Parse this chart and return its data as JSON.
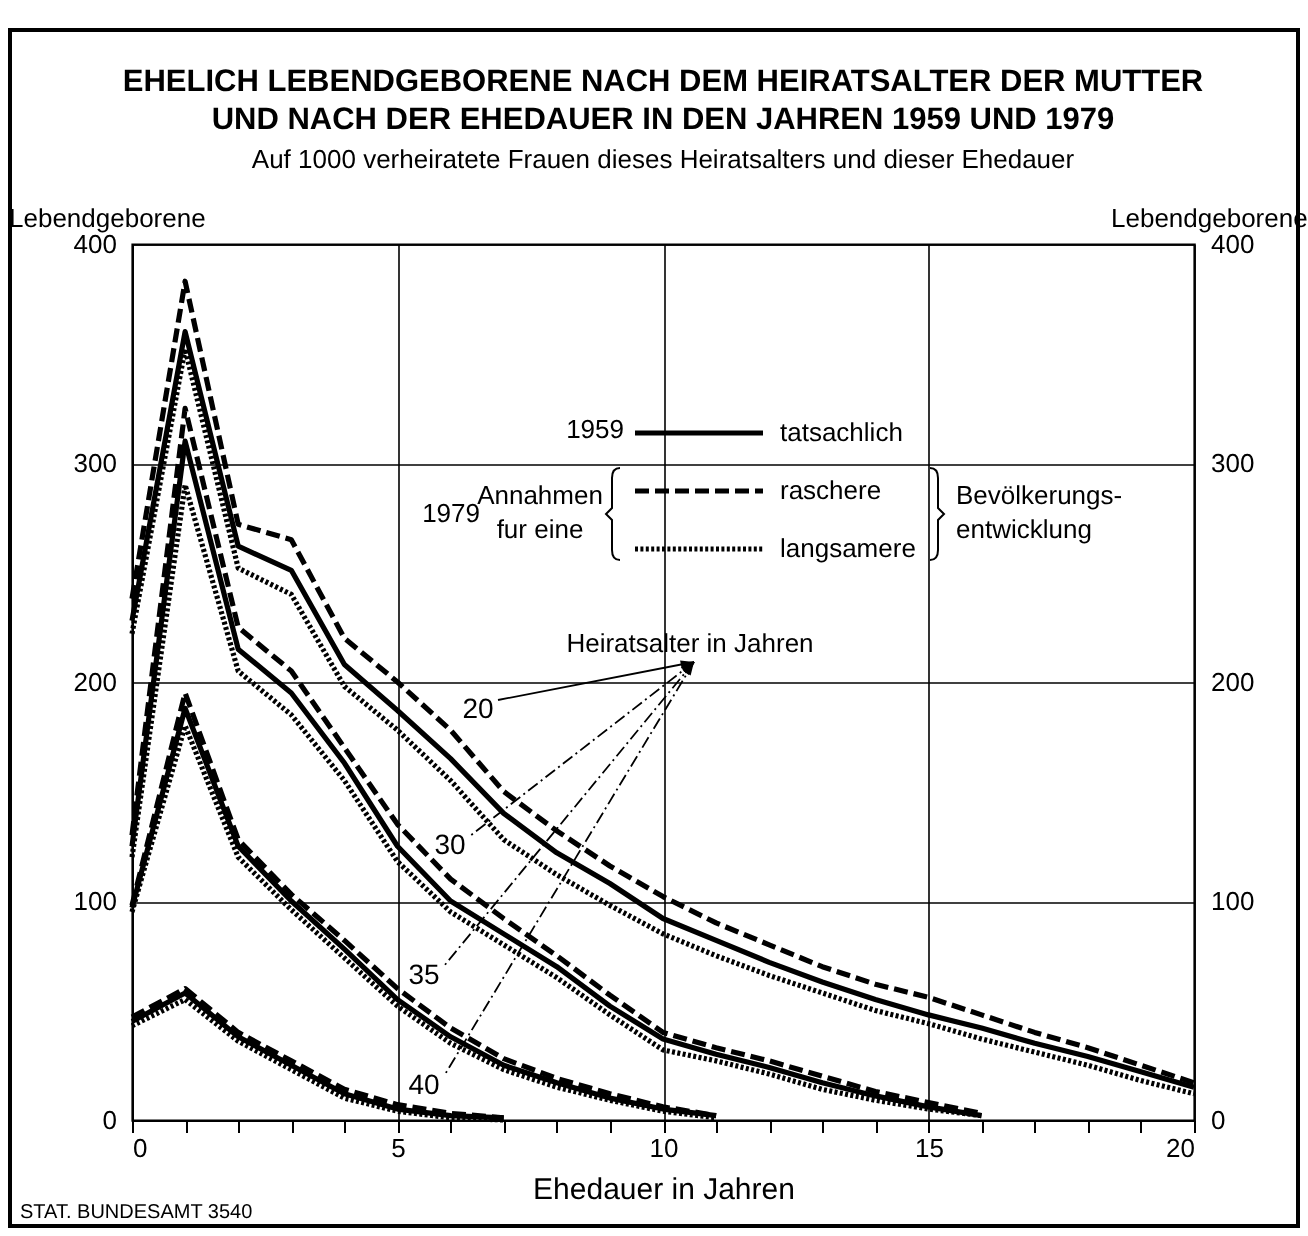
{
  "chart_data": {
    "type": "line",
    "title": "EHELICH LEBENDGEBORENE NACH DEM HEIRATSALTER DER MUTTER UND NACH DER EHEDAUER IN DEN JAHREN 1959 UND 1979",
    "subtitle": "Auf 1000 verheiratete Frauen dieses Heiratsalters und dieser Ehedauer",
    "xlabel": "Ehedauer in Jahren",
    "ylabel": "Lebendgeborene",
    "y2label": "Lebendgeborene",
    "x": [
      0,
      1,
      2,
      3,
      4,
      5,
      6,
      7,
      8,
      9,
      10,
      11,
      12,
      13,
      14,
      15,
      16,
      17,
      18,
      19,
      20
    ],
    "series": [
      {
        "name": "tatsachlich",
        "color": "#000000",
        "line_style": "solid",
        "values": [
          228,
          360,
          262,
          251,
          208,
          187,
          165,
          140,
          122,
          108,
          92,
          82,
          72,
          63,
          55,
          48,
          42,
          35,
          29,
          22,
          15
        ]
      },
      {
        "name": "raschere",
        "color": "#000000",
        "line_style": "dashed",
        "values": [
          238,
          383,
          272,
          265,
          220,
          200,
          178,
          150,
          132,
          116,
          102,
          90,
          80,
          70,
          62,
          56,
          48,
          40,
          33,
          25,
          17
        ]
      },
      {
        "name": "langsamere",
        "color": "#000000",
        "line_style": "dotted",
        "values": [
          222,
          352,
          252,
          240,
          198,
          178,
          155,
          128,
          112,
          98,
          85,
          75,
          66,
          58,
          50,
          44,
          37,
          31,
          25,
          18,
          12
        ]
      },
      {
        "color": "#000000",
        "line_style": "solid",
        "values": [
          125,
          310,
          215,
          195,
          163,
          125,
          100,
          85,
          70,
          52,
          37,
          30,
          24,
          17,
          11,
          6,
          2,
          null,
          null,
          null,
          null
        ]
      },
      {
        "color": "#000000",
        "line_style": "dashed",
        "values": [
          130,
          325,
          225,
          205,
          170,
          135,
          110,
          92,
          75,
          57,
          40,
          33,
          27,
          20,
          13,
          8,
          3,
          null,
          null,
          null,
          null
        ]
      },
      {
        "color": "#000000",
        "line_style": "dotted",
        "values": [
          120,
          290,
          205,
          185,
          155,
          118,
          95,
          80,
          65,
          48,
          32,
          27,
          21,
          14,
          9,
          5,
          2,
          null,
          null,
          null,
          null
        ]
      },
      {
        "color": "#000000",
        "line_style": "solid",
        "values": [
          97,
          188,
          125,
          100,
          78,
          55,
          38,
          25,
          17,
          10,
          5,
          2,
          null,
          null,
          null,
          null,
          null,
          null,
          null,
          null,
          null
        ]
      },
      {
        "color": "#000000",
        "line_style": "dashed",
        "values": [
          98,
          195,
          128,
          103,
          82,
          60,
          42,
          28,
          19,
          12,
          6,
          2,
          null,
          null,
          null,
          null,
          null,
          null,
          null,
          null,
          null
        ]
      },
      {
        "color": "#000000",
        "line_style": "dotted",
        "values": [
          95,
          180,
          120,
          96,
          74,
          52,
          35,
          23,
          15,
          9,
          4,
          1,
          null,
          null,
          null,
          null,
          null,
          null,
          null,
          null,
          null
        ]
      },
      {
        "color": "#000000",
        "line_style": "solid",
        "values": [
          45,
          58,
          38,
          25,
          12,
          5,
          2,
          1,
          null,
          null,
          null,
          null,
          null,
          null,
          null,
          null,
          null,
          null,
          null,
          null,
          null
        ]
      },
      {
        "color": "#000000",
        "line_style": "dashed",
        "values": [
          47,
          60,
          40,
          27,
          14,
          7,
          3,
          1,
          null,
          null,
          null,
          null,
          null,
          null,
          null,
          null,
          null,
          null,
          null,
          null,
          null
        ]
      },
      {
        "color": "#000000",
        "line_style": "dotted",
        "values": [
          43,
          55,
          36,
          23,
          10,
          4,
          1,
          0,
          null,
          null,
          null,
          null,
          null,
          null,
          null,
          null,
          null,
          null,
          null,
          null,
          null
        ]
      }
    ],
    "xlim": [
      0,
      20
    ],
    "xticks": [
      0,
      {
        "value": 1,
        "label": null
      },
      {
        "value": 2,
        "label": null
      },
      {
        "value": 3,
        "label": null
      },
      {
        "value": 4,
        "label": null
      },
      5,
      {
        "value": 6,
        "label": null
      },
      {
        "value": 7,
        "label": null
      },
      {
        "value": 8,
        "label": null
      },
      {
        "value": 9,
        "label": null
      },
      10,
      {
        "value": 11,
        "label": null
      },
      {
        "value": 12,
        "label": null
      },
      {
        "value": 13,
        "label": null
      },
      {
        "value": 14,
        "label": null
      },
      15,
      {
        "value": 16,
        "label": null
      },
      {
        "value": 17,
        "label": null
      },
      {
        "value": 18,
        "label": null
      },
      {
        "value": 19,
        "label": null
      },
      20
    ],
    "ylim": [
      0,
      400
    ],
    "yticks": [
      0,
      100,
      200,
      300,
      400
    ],
    "y2lim": [
      0,
      400
    ],
    "y2ticks": [
      0,
      100,
      200,
      300,
      400
    ],
    "grid": true,
    "legend": "top",
    "annotations": [
      "STAT. BUNDESAMT 3540",
      "1959",
      "1979",
      "Annahmen",
      "fur eine",
      "Bevölkerungs-",
      "entwicklung",
      "Heiratsalter in Jahren",
      "20",
      "30",
      "35",
      "40"
    ]
  }
}
